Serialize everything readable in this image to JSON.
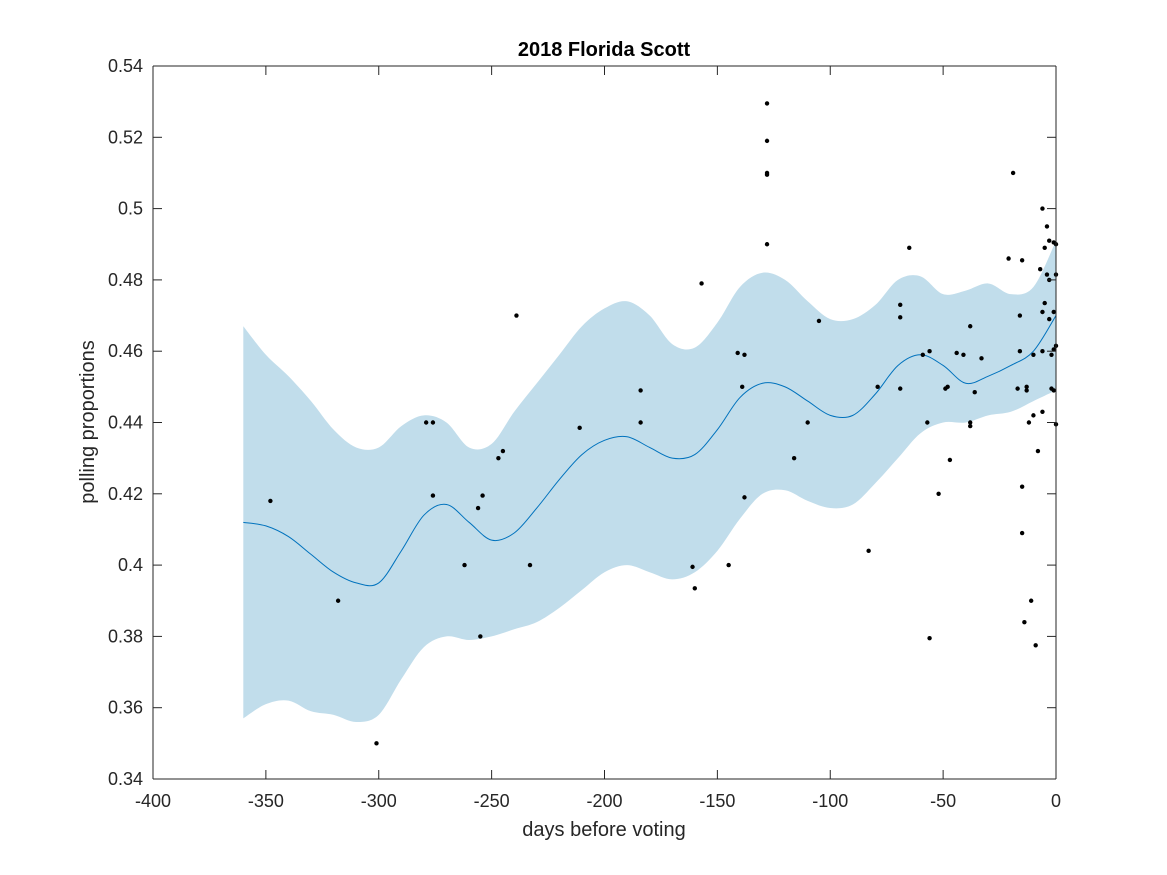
{
  "chart_data": {
    "type": "scatter",
    "title": "2018 Florida Scott",
    "xlabel": "days before voting",
    "ylabel": "polling proportions",
    "xlim": [
      -400,
      0
    ],
    "ylim": [
      0.34,
      0.54
    ],
    "xticks": [
      "-400",
      "-350",
      "-300",
      "-250",
      "-200",
      "-150",
      "-100",
      "-50",
      "0"
    ],
    "yticks": [
      "0.34",
      "0.36",
      "0.38",
      "0.4",
      "0.42",
      "0.44",
      "0.46",
      "0.48",
      "0.5",
      "0.52",
      "0.54"
    ],
    "grid": false,
    "colors": {
      "band": "#c1ddeb",
      "mean_line": "#0072bd",
      "points": "#000000",
      "axes": "#262626"
    },
    "band": {
      "x": [
        -360,
        -350,
        -340,
        -330,
        -320,
        -310,
        -300,
        -290,
        -280,
        -270,
        -260,
        -250,
        -240,
        -230,
        -220,
        -210,
        -200,
        -190,
        -180,
        -170,
        -160,
        -150,
        -140,
        -130,
        -120,
        -110,
        -100,
        -90,
        -80,
        -70,
        -60,
        -50,
        -40,
        -30,
        -20,
        -10,
        0
      ],
      "upper": [
        0.467,
        0.459,
        0.453,
        0.446,
        0.438,
        0.433,
        0.433,
        0.439,
        0.442,
        0.44,
        0.433,
        0.434,
        0.443,
        0.451,
        0.459,
        0.467,
        0.472,
        0.474,
        0.47,
        0.462,
        0.461,
        0.468,
        0.478,
        0.482,
        0.48,
        0.474,
        0.469,
        0.469,
        0.473,
        0.48,
        0.481,
        0.476,
        0.477,
        0.479,
        0.476,
        0.478,
        0.491
      ],
      "lower": [
        0.357,
        0.361,
        0.362,
        0.359,
        0.358,
        0.356,
        0.358,
        0.368,
        0.377,
        0.38,
        0.379,
        0.38,
        0.382,
        0.384,
        0.388,
        0.393,
        0.398,
        0.4,
        0.398,
        0.396,
        0.398,
        0.404,
        0.413,
        0.42,
        0.421,
        0.418,
        0.416,
        0.417,
        0.423,
        0.43,
        0.437,
        0.44,
        0.44,
        0.442,
        0.443,
        0.446,
        0.449
      ]
    },
    "mean_line": {
      "x": [
        -360,
        -350,
        -340,
        -330,
        -320,
        -310,
        -300,
        -290,
        -280,
        -270,
        -260,
        -250,
        -240,
        -230,
        -220,
        -210,
        -200,
        -190,
        -180,
        -170,
        -160,
        -150,
        -140,
        -130,
        -120,
        -110,
        -100,
        -90,
        -80,
        -70,
        -60,
        -50,
        -40,
        -30,
        -20,
        -10,
        0
      ],
      "y": [
        0.412,
        0.411,
        0.408,
        0.403,
        0.398,
        0.395,
        0.395,
        0.404,
        0.414,
        0.417,
        0.412,
        0.407,
        0.409,
        0.416,
        0.424,
        0.431,
        0.435,
        0.436,
        0.433,
        0.43,
        0.431,
        0.438,
        0.447,
        0.451,
        0.45,
        0.446,
        0.442,
        0.442,
        0.448,
        0.456,
        0.459,
        0.456,
        0.451,
        0.453,
        0.456,
        0.46,
        0.47
      ]
    },
    "points": [
      {
        "x": -348,
        "y": 0.418
      },
      {
        "x": -318,
        "y": 0.39
      },
      {
        "x": -301,
        "y": 0.35
      },
      {
        "x": -279,
        "y": 0.44
      },
      {
        "x": -276,
        "y": 0.44
      },
      {
        "x": -276,
        "y": 0.4195
      },
      {
        "x": -262,
        "y": 0.4
      },
      {
        "x": -256,
        "y": 0.416
      },
      {
        "x": -255,
        "y": 0.38
      },
      {
        "x": -254,
        "y": 0.4195
      },
      {
        "x": -247,
        "y": 0.43
      },
      {
        "x": -245,
        "y": 0.432
      },
      {
        "x": -239,
        "y": 0.47
      },
      {
        "x": -233,
        "y": 0.4
      },
      {
        "x": -211,
        "y": 0.4385
      },
      {
        "x": -184,
        "y": 0.449
      },
      {
        "x": -184,
        "y": 0.44
      },
      {
        "x": -161,
        "y": 0.3995
      },
      {
        "x": -160,
        "y": 0.3935
      },
      {
        "x": -157,
        "y": 0.479
      },
      {
        "x": -145,
        "y": 0.4
      },
      {
        "x": -141,
        "y": 0.4595
      },
      {
        "x": -139,
        "y": 0.45
      },
      {
        "x": -138,
        "y": 0.459
      },
      {
        "x": -138,
        "y": 0.419
      },
      {
        "x": -128,
        "y": 0.5295
      },
      {
        "x": -128,
        "y": 0.519
      },
      {
        "x": -128,
        "y": 0.5095
      },
      {
        "x": -128,
        "y": 0.51
      },
      {
        "x": -128,
        "y": 0.49
      },
      {
        "x": -116,
        "y": 0.43
      },
      {
        "x": -110,
        "y": 0.44
      },
      {
        "x": -105,
        "y": 0.4685
      },
      {
        "x": -83,
        "y": 0.404
      },
      {
        "x": -79,
        "y": 0.45
      },
      {
        "x": -69,
        "y": 0.473
      },
      {
        "x": -69,
        "y": 0.4695
      },
      {
        "x": -69,
        "y": 0.4495
      },
      {
        "x": -65,
        "y": 0.489
      },
      {
        "x": -59,
        "y": 0.459
      },
      {
        "x": -57,
        "y": 0.44
      },
      {
        "x": -56,
        "y": 0.46
      },
      {
        "x": -56,
        "y": 0.3795
      },
      {
        "x": -52,
        "y": 0.42
      },
      {
        "x": -49,
        "y": 0.4495
      },
      {
        "x": -48,
        "y": 0.45
      },
      {
        "x": -47,
        "y": 0.4295
      },
      {
        "x": -44,
        "y": 0.4595
      },
      {
        "x": -41,
        "y": 0.459
      },
      {
        "x": -38,
        "y": 0.467
      },
      {
        "x": -38,
        "y": 0.44
      },
      {
        "x": -38,
        "y": 0.439
      },
      {
        "x": -36,
        "y": 0.4485
      },
      {
        "x": -33,
        "y": 0.458
      },
      {
        "x": -21,
        "y": 0.486
      },
      {
        "x": -19,
        "y": 0.51
      },
      {
        "x": -17,
        "y": 0.4495
      },
      {
        "x": -16,
        "y": 0.47
      },
      {
        "x": -16,
        "y": 0.46
      },
      {
        "x": -15,
        "y": 0.4855
      },
      {
        "x": -15,
        "y": 0.422
      },
      {
        "x": -15,
        "y": 0.409
      },
      {
        "x": -14,
        "y": 0.384
      },
      {
        "x": -13,
        "y": 0.45
      },
      {
        "x": -13,
        "y": 0.449
      },
      {
        "x": -12,
        "y": 0.44
      },
      {
        "x": -11,
        "y": 0.39
      },
      {
        "x": -10,
        "y": 0.459
      },
      {
        "x": -10,
        "y": 0.442
      },
      {
        "x": -9,
        "y": 0.3775
      },
      {
        "x": -8,
        "y": 0.432
      },
      {
        "x": -7,
        "y": 0.483
      },
      {
        "x": -6,
        "y": 0.5
      },
      {
        "x": -6,
        "y": 0.471
      },
      {
        "x": -6,
        "y": 0.46
      },
      {
        "x": -6,
        "y": 0.443
      },
      {
        "x": -5,
        "y": 0.4735
      },
      {
        "x": -5,
        "y": 0.489
      },
      {
        "x": -4,
        "y": 0.4815
      },
      {
        "x": -4,
        "y": 0.495
      },
      {
        "x": -3,
        "y": 0.491
      },
      {
        "x": -3,
        "y": 0.48
      },
      {
        "x": -3,
        "y": 0.469
      },
      {
        "x": -2,
        "y": 0.459
      },
      {
        "x": -2,
        "y": 0.4495
      },
      {
        "x": -1,
        "y": 0.4905
      },
      {
        "x": -1,
        "y": 0.471
      },
      {
        "x": -1,
        "y": 0.4605
      },
      {
        "x": -1,
        "y": 0.449
      },
      {
        "x": 0,
        "y": 0.49
      },
      {
        "x": 0,
        "y": 0.4815
      },
      {
        "x": 0,
        "y": 0.4615
      },
      {
        "x": 0,
        "y": 0.4395
      }
    ]
  }
}
